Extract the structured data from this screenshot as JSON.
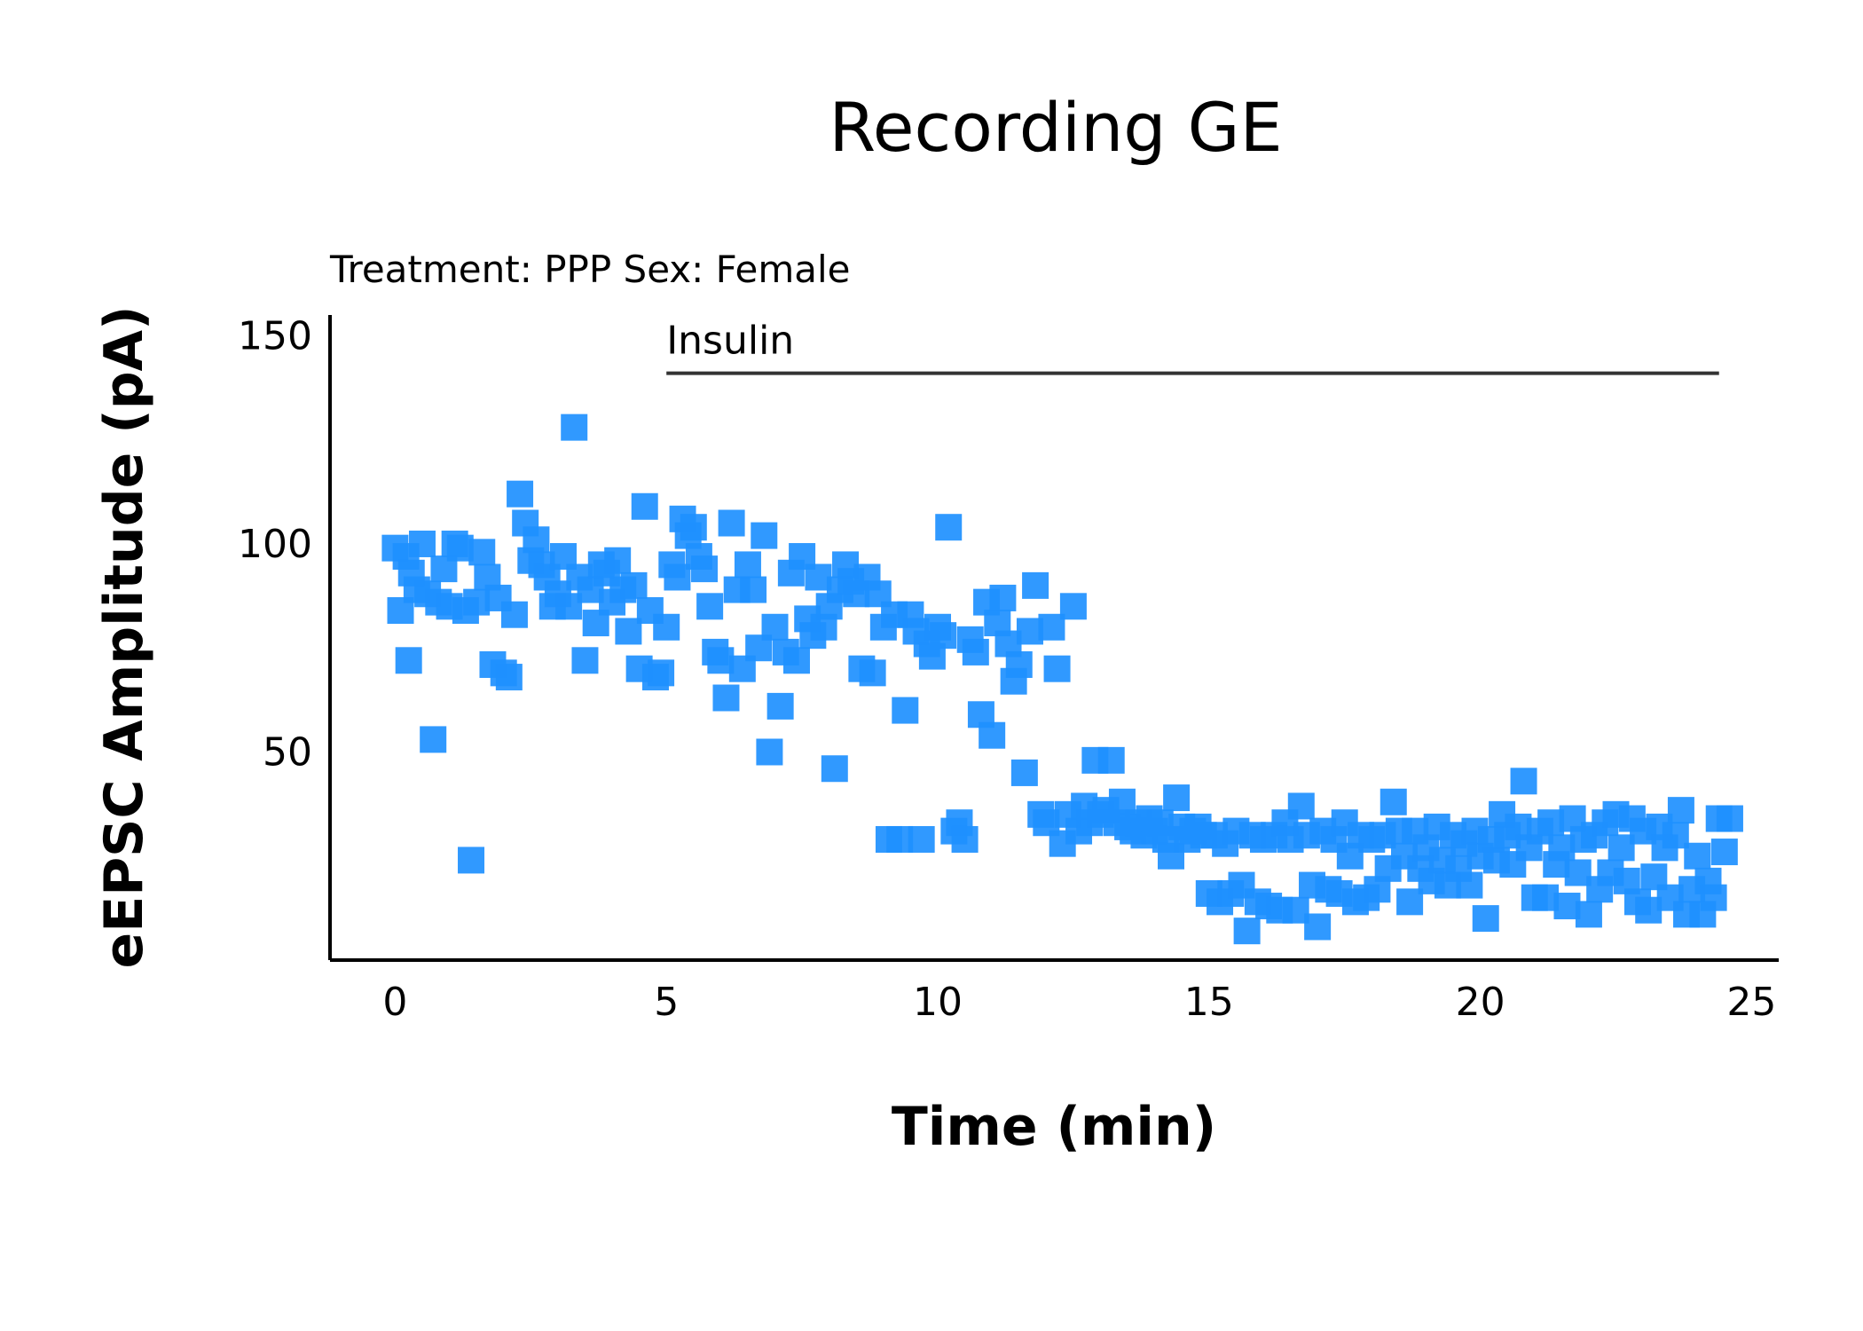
{
  "chart_data": {
    "type": "scatter",
    "title": "Recording GE",
    "subtitle": "Treatment: PPP  Sex: Female",
    "xlabel": "Time (min)",
    "ylabel": "eEPSC Amplitude (pA)",
    "xlim": [
      -1.2,
      25.5
    ],
    "ylim": [
      0,
      155
    ],
    "xticks": [
      "0",
      "5",
      "10",
      "15",
      "20",
      "25"
    ],
    "yticks": [
      "50",
      "100",
      "150"
    ],
    "marker": "square",
    "color": "#1e90ff",
    "annotation": {
      "label": "Insulin",
      "x_start": 5,
      "x_end": 24.4,
      "y": 141
    },
    "points": [
      [
        0.0,
        99
      ],
      [
        0.1,
        84
      ],
      [
        0.2,
        97
      ],
      [
        0.25,
        72
      ],
      [
        0.3,
        93
      ],
      [
        0.4,
        89
      ],
      [
        0.5,
        100
      ],
      [
        0.6,
        88
      ],
      [
        0.7,
        53
      ],
      [
        0.8,
        86
      ],
      [
        0.9,
        94
      ],
      [
        1.0,
        85
      ],
      [
        1.1,
        100
      ],
      [
        1.2,
        99
      ],
      [
        1.3,
        84
      ],
      [
        1.4,
        24
      ],
      [
        1.5,
        86
      ],
      [
        1.6,
        98
      ],
      [
        1.7,
        92
      ],
      [
        1.8,
        71
      ],
      [
        1.9,
        87
      ],
      [
        2.0,
        69
      ],
      [
        2.1,
        68
      ],
      [
        2.2,
        83
      ],
      [
        2.3,
        112
      ],
      [
        2.4,
        105
      ],
      [
        2.5,
        96
      ],
      [
        2.6,
        101
      ],
      [
        2.7,
        95
      ],
      [
        2.8,
        92
      ],
      [
        2.9,
        85
      ],
      [
        3.0,
        88
      ],
      [
        3.1,
        97
      ],
      [
        3.2,
        85
      ],
      [
        3.3,
        128
      ],
      [
        3.4,
        92
      ],
      [
        3.5,
        72
      ],
      [
        3.6,
        89
      ],
      [
        3.7,
        81
      ],
      [
        3.8,
        95
      ],
      [
        3.9,
        93
      ],
      [
        4.0,
        86
      ],
      [
        4.1,
        96
      ],
      [
        4.2,
        89
      ],
      [
        4.3,
        79
      ],
      [
        4.4,
        90
      ],
      [
        4.5,
        70
      ],
      [
        4.6,
        109
      ],
      [
        4.7,
        84
      ],
      [
        4.8,
        68
      ],
      [
        4.9,
        69
      ],
      [
        5.0,
        80
      ],
      [
        5.1,
        95
      ],
      [
        5.2,
        92
      ],
      [
        5.3,
        106
      ],
      [
        5.4,
        102
      ],
      [
        5.5,
        104
      ],
      [
        5.6,
        97
      ],
      [
        5.7,
        94
      ],
      [
        5.8,
        85
      ],
      [
        5.9,
        74
      ],
      [
        6.0,
        72
      ],
      [
        6.1,
        63
      ],
      [
        6.2,
        105
      ],
      [
        6.3,
        89
      ],
      [
        6.4,
        70
      ],
      [
        6.5,
        95
      ],
      [
        6.6,
        89
      ],
      [
        6.7,
        75
      ],
      [
        6.8,
        102
      ],
      [
        6.9,
        50
      ],
      [
        7.0,
        80
      ],
      [
        7.1,
        61
      ],
      [
        7.2,
        74
      ],
      [
        7.3,
        93
      ],
      [
        7.4,
        72
      ],
      [
        7.5,
        97
      ],
      [
        7.6,
        82
      ],
      [
        7.7,
        78
      ],
      [
        7.8,
        92
      ],
      [
        7.9,
        80
      ],
      [
        8.0,
        85
      ],
      [
        8.1,
        46
      ],
      [
        8.2,
        89
      ],
      [
        8.3,
        95
      ],
      [
        8.4,
        91
      ],
      [
        8.5,
        88
      ],
      [
        8.6,
        70
      ],
      [
        8.7,
        92
      ],
      [
        8.8,
        69
      ],
      [
        8.9,
        88
      ],
      [
        9.0,
        80
      ],
      [
        9.1,
        29
      ],
      [
        9.2,
        83
      ],
      [
        9.3,
        29
      ],
      [
        9.4,
        60
      ],
      [
        9.5,
        83
      ],
      [
        9.6,
        79
      ],
      [
        9.7,
        29
      ],
      [
        9.8,
        76
      ],
      [
        9.9,
        73
      ],
      [
        10.0,
        80
      ],
      [
        10.1,
        78
      ],
      [
        10.2,
        104
      ],
      [
        10.3,
        31
      ],
      [
        10.4,
        33
      ],
      [
        10.5,
        29
      ],
      [
        10.6,
        77
      ],
      [
        10.7,
        74
      ],
      [
        10.8,
        59
      ],
      [
        10.9,
        86
      ],
      [
        11.0,
        54
      ],
      [
        11.1,
        81
      ],
      [
        11.2,
        87
      ],
      [
        11.3,
        76
      ],
      [
        11.4,
        67
      ],
      [
        11.5,
        71
      ],
      [
        11.6,
        45
      ],
      [
        11.7,
        79
      ],
      [
        11.8,
        90
      ],
      [
        11.9,
        35
      ],
      [
        12.0,
        33
      ],
      [
        12.1,
        80
      ],
      [
        12.2,
        70
      ],
      [
        12.3,
        28
      ],
      [
        12.4,
        35
      ],
      [
        12.5,
        85
      ],
      [
        12.6,
        31
      ],
      [
        12.7,
        37
      ],
      [
        12.8,
        33
      ],
      [
        12.9,
        48
      ],
      [
        13.0,
        35
      ],
      [
        13.1,
        36
      ],
      [
        13.2,
        48
      ],
      [
        13.3,
        33
      ],
      [
        13.4,
        38
      ],
      [
        13.5,
        32
      ],
      [
        13.6,
        31
      ],
      [
        13.7,
        33
      ],
      [
        13.8,
        30
      ],
      [
        13.9,
        34
      ],
      [
        14.0,
        31
      ],
      [
        14.1,
        33
      ],
      [
        14.2,
        29
      ],
      [
        14.3,
        25
      ],
      [
        14.4,
        39
      ],
      [
        14.5,
        32
      ],
      [
        14.6,
        29
      ],
      [
        14.7,
        31
      ],
      [
        14.8,
        32
      ],
      [
        14.9,
        30
      ],
      [
        15.0,
        16
      ],
      [
        15.1,
        30
      ],
      [
        15.2,
        14
      ],
      [
        15.3,
        28
      ],
      [
        15.4,
        16
      ],
      [
        15.5,
        31
      ],
      [
        15.6,
        18
      ],
      [
        15.7,
        7
      ],
      [
        15.8,
        30
      ],
      [
        15.9,
        14
      ],
      [
        16.0,
        29
      ],
      [
        16.1,
        13
      ],
      [
        16.2,
        30
      ],
      [
        16.3,
        12
      ],
      [
        16.4,
        33
      ],
      [
        16.5,
        29
      ],
      [
        16.6,
        12
      ],
      [
        16.7,
        37
      ],
      [
        16.8,
        30
      ],
      [
        16.9,
        18
      ],
      [
        17.0,
        8
      ],
      [
        17.1,
        31
      ],
      [
        17.2,
        17
      ],
      [
        17.3,
        29
      ],
      [
        17.4,
        16
      ],
      [
        17.5,
        33
      ],
      [
        17.6,
        25
      ],
      [
        17.7,
        14
      ],
      [
        17.8,
        30
      ],
      [
        17.9,
        15
      ],
      [
        18.0,
        29
      ],
      [
        18.1,
        17
      ],
      [
        18.2,
        30
      ],
      [
        18.3,
        22
      ],
      [
        18.4,
        38
      ],
      [
        18.5,
        31
      ],
      [
        18.6,
        25
      ],
      [
        18.7,
        14
      ],
      [
        18.8,
        31
      ],
      [
        18.9,
        22
      ],
      [
        19.0,
        27
      ],
      [
        19.1,
        19
      ],
      [
        19.2,
        32
      ],
      [
        19.3,
        24
      ],
      [
        19.4,
        18
      ],
      [
        19.5,
        30
      ],
      [
        19.6,
        22
      ],
      [
        19.7,
        28
      ],
      [
        19.8,
        18
      ],
      [
        19.9,
        31
      ],
      [
        20.0,
        25
      ],
      [
        20.1,
        10
      ],
      [
        20.2,
        29
      ],
      [
        20.3,
        24
      ],
      [
        20.4,
        35
      ],
      [
        20.5,
        30
      ],
      [
        20.6,
        23
      ],
      [
        20.7,
        32
      ],
      [
        20.8,
        43
      ],
      [
        20.9,
        27
      ],
      [
        21.0,
        15
      ],
      [
        21.1,
        31
      ],
      [
        21.2,
        15
      ],
      [
        21.3,
        33
      ],
      [
        21.4,
        23
      ],
      [
        21.5,
        27
      ],
      [
        21.6,
        13
      ],
      [
        21.7,
        34
      ],
      [
        21.8,
        21
      ],
      [
        21.9,
        29
      ],
      [
        22.0,
        11
      ],
      [
        22.1,
        30
      ],
      [
        22.2,
        17
      ],
      [
        22.3,
        33
      ],
      [
        22.4,
        21
      ],
      [
        22.5,
        35
      ],
      [
        22.6,
        27
      ],
      [
        22.7,
        19
      ],
      [
        22.8,
        34
      ],
      [
        22.9,
        14
      ],
      [
        23.0,
        31
      ],
      [
        23.1,
        12
      ],
      [
        23.2,
        20
      ],
      [
        23.3,
        32
      ],
      [
        23.4,
        27
      ],
      [
        23.5,
        15
      ],
      [
        23.6,
        30
      ],
      [
        23.7,
        36
      ],
      [
        23.8,
        11
      ],
      [
        23.9,
        17
      ],
      [
        24.0,
        25
      ],
      [
        24.1,
        11
      ],
      [
        24.2,
        19
      ],
      [
        24.3,
        15
      ],
      [
        24.4,
        34
      ],
      [
        24.5,
        26
      ],
      [
        24.6,
        34
      ]
    ]
  }
}
